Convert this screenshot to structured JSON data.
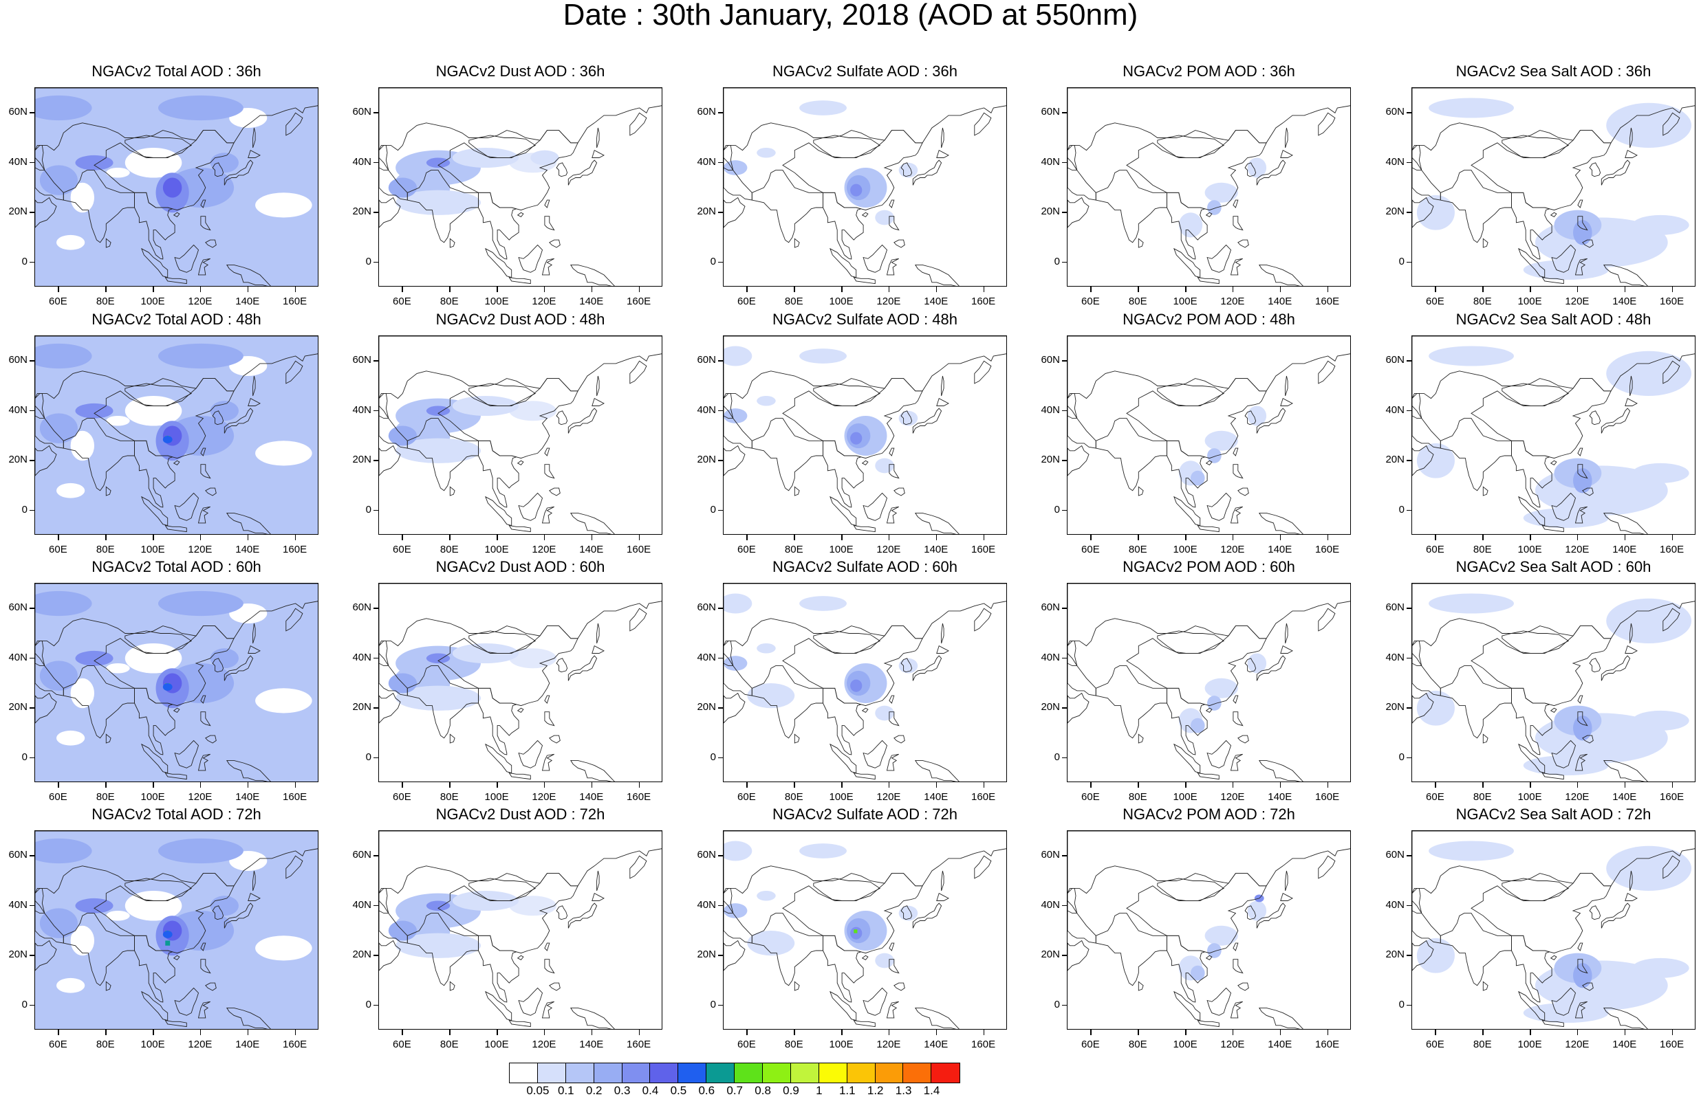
{
  "title": "Date : 30th January, 2018 (AOD at 550nm)",
  "lat_ticks": [
    "60N",
    "40N",
    "20N",
    "0"
  ],
  "lon_ticks": [
    "60E",
    "80E",
    "100E",
    "120E",
    "140E",
    "160E"
  ],
  "species": [
    {
      "key": "total"
    },
    {
      "key": "dust"
    },
    {
      "key": "sulfate"
    },
    {
      "key": "pom"
    },
    {
      "key": "seasalt"
    }
  ],
  "panels": [
    [
      "NGACv2 Total AOD : 36h",
      "NGACv2 Dust AOD : 36h",
      "NGACv2 Sulfate AOD : 36h",
      "NGACv2 POM AOD : 36h",
      "NGACv2 Sea Salt AOD : 36h"
    ],
    [
      "NGACv2 Total AOD : 48h",
      "NGACv2 Dust AOD : 48h",
      "NGACv2 Sulfate AOD : 48h",
      "NGACv2 POM AOD : 48h",
      "NGACv2 Sea Salt AOD : 48h"
    ],
    [
      "NGACv2 Total AOD : 60h",
      "NGACv2 Dust AOD : 60h",
      "NGACv2 Sulfate AOD : 60h",
      "NGACv2 POM AOD : 60h",
      "NGACv2 Sea Salt AOD : 60h"
    ],
    [
      "NGACv2 Total AOD : 72h",
      "NGACv2 Dust AOD : 72h",
      "NGACv2 Sulfate AOD : 72h",
      "NGACv2 POM AOD : 72h",
      "NGACv2 Sea Salt  AOD : 72h"
    ]
  ],
  "colorbar": {
    "labels": [
      "0.05",
      "0.1",
      "0.2",
      "0.3",
      "0.4",
      "0.5",
      "0.6",
      "0.7",
      "0.8",
      "0.9",
      "1",
      "1.1",
      "1.2",
      "1.3",
      "1.4"
    ],
    "colors": [
      "#ffffff",
      "#d6e0fb",
      "#b5c6f7",
      "#98adf3",
      "#7f8ff0",
      "#5f62ea",
      "#1f5fef",
      "#0b9a93",
      "#5ee21a",
      "#8ef014",
      "#c1f43b",
      "#fbfb05",
      "#fbc506",
      "#fb9c07",
      "#fb6f08",
      "#f51d10"
    ]
  },
  "map_extent": {
    "lon_min": 50,
    "lon_max": 170,
    "lat_min": -10,
    "lat_max": 70
  }
}
